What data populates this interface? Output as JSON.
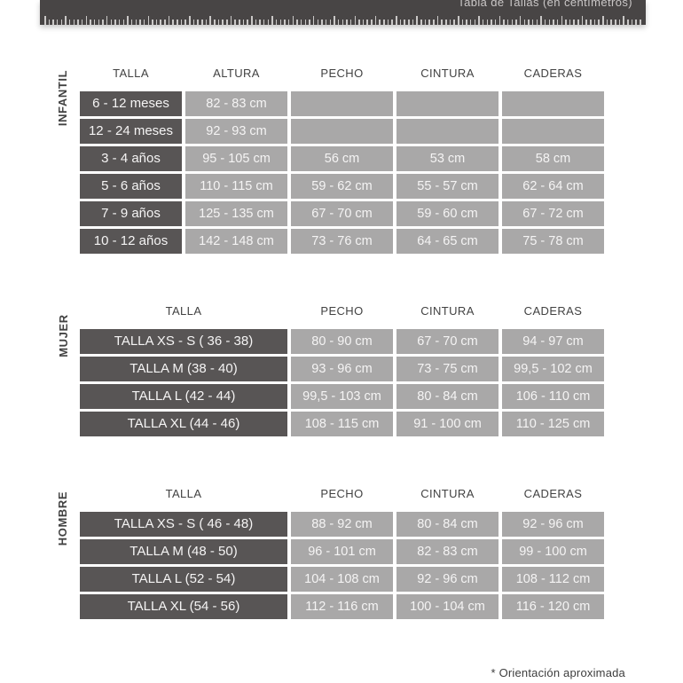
{
  "ruler": {
    "title": "Tabla de Tallas (en centímetros)"
  },
  "colors": {
    "dark_cell": "#585555",
    "light_cell": "#a9a8a8",
    "ruler_bg": "#484545"
  },
  "tables": [
    {
      "id": "infantil",
      "section_label": "INFANTIL",
      "headers": [
        "TALLA",
        "ALTURA",
        "PECHO",
        "CINTURA",
        "CADERAS"
      ],
      "rows": [
        [
          "6 - 12 meses",
          "82 - 83 cm",
          "",
          "",
          ""
        ],
        [
          "12 - 24 meses",
          "92 - 93 cm",
          "",
          "",
          ""
        ],
        [
          "3 - 4 años",
          "95 - 105 cm",
          "56 cm",
          "53 cm",
          "58 cm"
        ],
        [
          "5 - 6 años",
          "110 - 115 cm",
          "59 - 62 cm",
          "55 - 57 cm",
          "62 - 64 cm"
        ],
        [
          "7 - 9 años",
          "125 - 135 cm",
          "67 - 70 cm",
          "59 - 60 cm",
          "67 - 72 cm"
        ],
        [
          "10 - 12 años",
          "142 - 148 cm",
          "73 - 76 cm",
          "64 - 65 cm",
          "75 - 78 cm"
        ]
      ]
    },
    {
      "id": "mujer",
      "section_label": "MUJER",
      "headers": [
        "TALLA",
        "PECHO",
        "CINTURA",
        "CADERAS"
      ],
      "rows": [
        [
          "TALLA XS - S ( 36 - 38)",
          "80 - 90 cm",
          "67 - 70 cm",
          "94 - 97 cm"
        ],
        [
          "TALLA M (38 - 40)",
          "93 - 96 cm",
          "73 - 75 cm",
          "99,5 - 102 cm"
        ],
        [
          "TALLA L (42 - 44)",
          "99,5 - 103 cm",
          "80 - 84 cm",
          "106 - 110 cm"
        ],
        [
          "TALLA XL (44 - 46)",
          "108 - 115 cm",
          "91 - 100 cm",
          "110 - 125 cm"
        ]
      ]
    },
    {
      "id": "hombre",
      "section_label": "HOMBRE",
      "headers": [
        "TALLA",
        "PECHO",
        "CINTURA",
        "CADERAS"
      ],
      "rows": [
        [
          "TALLA XS - S ( 46 - 48)",
          "88 - 92 cm",
          "80 - 84 cm",
          "92 - 96 cm"
        ],
        [
          "TALLA M (48 - 50)",
          "96 - 101 cm",
          "82 - 83 cm",
          "99 - 100 cm"
        ],
        [
          "TALLA L (52 - 54)",
          "104 - 108 cm",
          "92 - 96 cm",
          "108 - 112 cm"
        ],
        [
          "TALLA XL (54 - 56)",
          "112 - 116 cm",
          "100 - 104 cm",
          "116 - 120 cm"
        ]
      ]
    }
  ],
  "footnote": "* Orientación aproximada"
}
